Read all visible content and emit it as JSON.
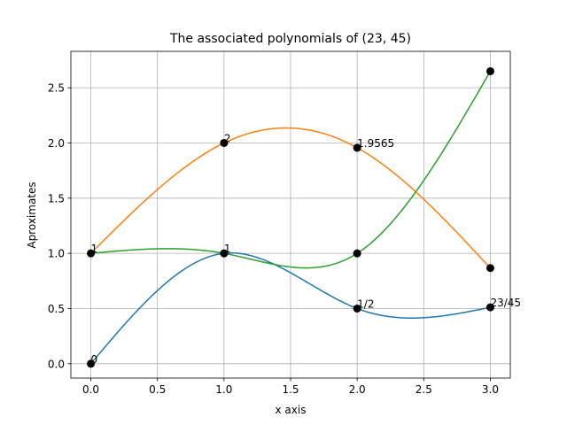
{
  "chart_data": {
    "type": "line",
    "title": "The associated polynomials of (23, 45)",
    "xlabel": "x axis",
    "ylabel": "Aproximates",
    "xlim": [
      -0.15,
      3.15
    ],
    "ylim": [
      -0.13,
      2.83
    ],
    "xticks": [
      0.0,
      0.5,
      1.0,
      1.5,
      2.0,
      2.5,
      3.0
    ],
    "xtick_labels": [
      "0.0",
      "0.5",
      "1.0",
      "1.5",
      "2.0",
      "2.5",
      "3.0"
    ],
    "yticks": [
      0.0,
      0.5,
      1.0,
      1.5,
      2.0,
      2.5
    ],
    "ytick_labels": [
      "0.0",
      "0.5",
      "1.0",
      "1.5",
      "2.0",
      "2.5"
    ],
    "grid": true,
    "series": [
      {
        "color": "#1f77b4",
        "points": [
          [
            0,
            0
          ],
          [
            1,
            1
          ],
          [
            2,
            0.5
          ],
          [
            3,
            0.5111
          ]
        ]
      },
      {
        "color": "#ff7f0e",
        "points": [
          [
            0,
            1
          ],
          [
            1,
            2
          ],
          [
            2,
            1.9565
          ],
          [
            3,
            0.8667
          ]
        ]
      },
      {
        "color": "#2ca02c",
        "points": [
          [
            0,
            1
          ],
          [
            1,
            1
          ],
          [
            2,
            1
          ],
          [
            3,
            2.65
          ]
        ]
      }
    ],
    "markers": {
      "color": "#000000",
      "points": [
        [
          0,
          0
        ],
        [
          1,
          1
        ],
        [
          2,
          0.5
        ],
        [
          3,
          0.5111
        ],
        [
          0,
          1
        ],
        [
          1,
          2
        ],
        [
          2,
          1.9565
        ],
        [
          3,
          0.8667
        ],
        [
          2,
          1
        ],
        [
          3,
          2.65
        ]
      ]
    },
    "annotations": [
      {
        "x": 0,
        "y": 0,
        "text": "0"
      },
      {
        "x": 0,
        "y": 1,
        "text": "1"
      },
      {
        "x": 1,
        "y": 2,
        "text": "2"
      },
      {
        "x": 1,
        "y": 1,
        "text": "1"
      },
      {
        "x": 2,
        "y": 1.9565,
        "text": "1.9565"
      },
      {
        "x": 2,
        "y": 0.5,
        "text": "1/2"
      },
      {
        "x": 3,
        "y": 0.5111,
        "text": "23/45"
      }
    ]
  }
}
